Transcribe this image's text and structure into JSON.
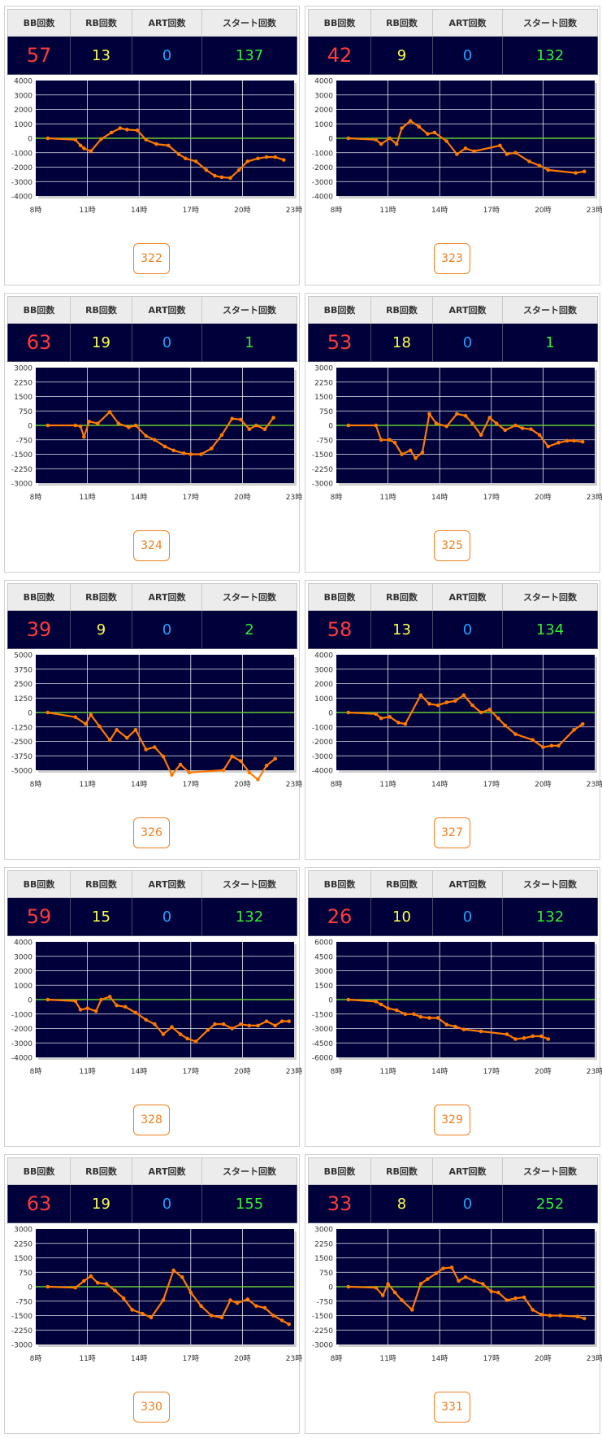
{
  "headers": {
    "bb": "BB回数",
    "rb": "RB回数",
    "art": "ART回数",
    "start": "スタート回数"
  },
  "x_ticks": [
    "8時",
    "11時",
    "14時",
    "17時",
    "20時",
    "23時"
  ],
  "colors": {
    "plot_bg": "#00003a",
    "line": "#ff7a00",
    "zero_line": "#66cc33",
    "grid": "#ffffff"
  },
  "machines": [
    {
      "id": "322",
      "bb": "57",
      "rb": "13",
      "art": "0",
      "start": "137",
      "chart_data": {
        "type": "line",
        "ylim": [
          -4000,
          4000
        ],
        "yticks": [
          "4000",
          "3000",
          "2000",
          "1000",
          "0",
          "-1000",
          "-2000",
          "-3000",
          "-4000"
        ],
        "x": [
          8.7,
          10.3,
          10.6,
          10.8,
          11.2,
          11.8,
          12.4,
          12.9,
          13.3,
          13.9,
          14.4,
          15.0,
          15.7,
          16.3,
          16.7,
          17.3,
          17.9,
          18.4,
          18.8,
          19.3,
          19.8,
          20.3,
          20.9,
          21.4,
          21.9,
          22.4
        ],
        "y": [
          0,
          -100,
          -500,
          -700,
          -900,
          -50,
          400,
          700,
          600,
          550,
          -100,
          -400,
          -500,
          -1100,
          -1400,
          -1600,
          -2200,
          -2600,
          -2700,
          -2750,
          -2200,
          -1600,
          -1400,
          -1300,
          -1300,
          -1500
        ]
      }
    },
    {
      "id": "323",
      "bb": "42",
      "rb": "9",
      "art": "0",
      "start": "132",
      "chart_data": {
        "type": "line",
        "ylim": [
          -4000,
          4000
        ],
        "yticks": [
          "4000",
          "3000",
          "2000",
          "1000",
          "0",
          "-1000",
          "-2000",
          "-3000",
          "-4000"
        ],
        "x": [
          8.7,
          10.3,
          10.6,
          11.1,
          11.5,
          11.8,
          12.3,
          12.8,
          13.3,
          13.7,
          14.4,
          15.0,
          15.5,
          16.0,
          17.5,
          17.9,
          18.4,
          19.2,
          19.8,
          20.3,
          21.9,
          22.4
        ],
        "y": [
          0,
          -100,
          -400,
          0,
          -400,
          700,
          1200,
          800,
          300,
          400,
          -200,
          -1100,
          -700,
          -900,
          -500,
          -1100,
          -1000,
          -1600,
          -1900,
          -2200,
          -2400,
          -2300
        ]
      }
    },
    {
      "id": "324",
      "bb": "63",
      "rb": "19",
      "art": "0",
      "start": "1",
      "chart_data": {
        "type": "line",
        "ylim": [
          -3000,
          3000
        ],
        "yticks": [
          "3000",
          "2250",
          "1500",
          "750",
          "0",
          "-750",
          "-1500",
          "-2250",
          "-3000"
        ],
        "x": [
          8.7,
          10.3,
          10.6,
          10.8,
          11.1,
          11.6,
          12.3,
          12.8,
          13.4,
          13.8,
          14.4,
          14.9,
          15.5,
          16.0,
          16.6,
          17.0,
          17.6,
          18.2,
          18.8,
          19.4,
          19.9,
          20.4,
          20.8,
          21.3,
          21.8
        ],
        "y": [
          0,
          0,
          -50,
          -600,
          200,
          100,
          700,
          100,
          -100,
          0,
          -550,
          -750,
          -1100,
          -1300,
          -1450,
          -1500,
          -1500,
          -1200,
          -500,
          350,
          300,
          -200,
          0,
          -200,
          400
        ]
      }
    },
    {
      "id": "325",
      "bb": "53",
      "rb": "18",
      "art": "0",
      "start": "1",
      "chart_data": {
        "type": "line",
        "ylim": [
          -3000,
          3000
        ],
        "yticks": [
          "3000",
          "2250",
          "1500",
          "750",
          "0",
          "-750",
          "-1500",
          "-2250",
          "-3000"
        ],
        "x": [
          8.7,
          10.3,
          10.6,
          11.1,
          11.4,
          11.8,
          12.3,
          12.6,
          13.0,
          13.4,
          13.8,
          14.4,
          15.0,
          15.5,
          15.9,
          16.4,
          16.9,
          17.3,
          17.8,
          18.4,
          18.8,
          19.3,
          19.8,
          20.3,
          20.9,
          21.4,
          21.8,
          22.3
        ],
        "y": [
          0,
          0,
          -750,
          -750,
          -900,
          -1500,
          -1300,
          -1700,
          -1400,
          600,
          100,
          -50,
          600,
          500,
          100,
          -500,
          400,
          100,
          -250,
          0,
          -150,
          -200,
          -500,
          -1100,
          -900,
          -800,
          -800,
          -850
        ]
      }
    },
    {
      "id": "326",
      "bb": "39",
      "rb": "9",
      "art": "0",
      "start": "2",
      "chart_data": {
        "type": "line",
        "ylim": [
          -5000,
          5000
        ],
        "yticks": [
          "5000",
          "3750",
          "2500",
          "1250",
          "0",
          "-1250",
          "-2500",
          "-3750",
          "-5000"
        ],
        "x": [
          8.7,
          10.3,
          10.9,
          11.2,
          11.7,
          12.3,
          12.7,
          13.3,
          13.8,
          14.4,
          14.9,
          15.4,
          15.9,
          16.4,
          16.9,
          18.9,
          19.4,
          19.9,
          20.4,
          20.9,
          21.4,
          21.9
        ],
        "y": [
          0,
          -400,
          -1000,
          -200,
          -1200,
          -2400,
          -1500,
          -2200,
          -1500,
          -3200,
          -3000,
          -3800,
          -5400,
          -4500,
          -5200,
          -5000,
          -3800,
          -4200,
          -5200,
          -5800,
          -4600,
          -4000
        ]
      }
    },
    {
      "id": "327",
      "bb": "58",
      "rb": "13",
      "art": "0",
      "start": "134",
      "chart_data": {
        "type": "line",
        "ylim": [
          -4000,
          4000
        ],
        "yticks": [
          "4000",
          "3000",
          "2000",
          "1000",
          "0",
          "-1000",
          "-2000",
          "-3000",
          "-4000"
        ],
        "x": [
          8.7,
          10.3,
          10.6,
          11.1,
          11.6,
          12.0,
          12.9,
          13.4,
          13.9,
          14.4,
          14.9,
          15.4,
          15.9,
          16.4,
          16.9,
          17.4,
          17.8,
          18.4,
          19.4,
          20.0,
          20.5,
          20.9,
          21.8,
          22.3
        ],
        "y": [
          0,
          -100,
          -400,
          -300,
          -700,
          -800,
          1200,
          600,
          500,
          700,
          800,
          1200,
          500,
          0,
          200,
          -400,
          -900,
          -1500,
          -1900,
          -2400,
          -2300,
          -2300,
          -1200,
          -800
        ]
      }
    },
    {
      "id": "328",
      "bb": "59",
      "rb": "15",
      "art": "0",
      "start": "132",
      "chart_data": {
        "type": "line",
        "ylim": [
          -4000,
          4000
        ],
        "yticks": [
          "4000",
          "3000",
          "2000",
          "1000",
          "0",
          "-1000",
          "-2000",
          "-3000",
          "-4000"
        ],
        "x": [
          8.7,
          10.3,
          10.6,
          11.0,
          11.5,
          11.8,
          12.3,
          12.7,
          13.2,
          13.8,
          14.4,
          14.9,
          15.4,
          15.9,
          16.4,
          16.8,
          17.3,
          18.0,
          18.4,
          18.9,
          19.4,
          19.9,
          20.4,
          20.9,
          21.4,
          21.9,
          22.3,
          22.7
        ],
        "y": [
          0,
          -100,
          -700,
          -600,
          -800,
          0,
          200,
          -400,
          -500,
          -900,
          -1400,
          -1700,
          -2400,
          -1900,
          -2400,
          -2700,
          -2900,
          -2100,
          -1700,
          -1700,
          -2000,
          -1700,
          -1800,
          -1800,
          -1500,
          -1800,
          -1500,
          -1500
        ]
      }
    },
    {
      "id": "329",
      "bb": "26",
      "rb": "10",
      "art": "0",
      "start": "132",
      "chart_data": {
        "type": "line",
        "ylim": [
          -6000,
          6000
        ],
        "yticks": [
          "6000",
          "4500",
          "3000",
          "1500",
          "0",
          "-1500",
          "-3000",
          "-4500",
          "-6000"
        ],
        "x": [
          8.7,
          10.3,
          10.6,
          11.0,
          11.5,
          12.0,
          12.5,
          12.9,
          13.4,
          13.9,
          14.4,
          14.9,
          15.4,
          16.4,
          17.9,
          18.4,
          18.9,
          19.4,
          19.9,
          20.3
        ],
        "y": [
          0,
          -200,
          -500,
          -900,
          -1100,
          -1500,
          -1500,
          -1800,
          -1900,
          -1900,
          -2600,
          -2800,
          -3100,
          -3300,
          -3600,
          -4100,
          -4000,
          -3800,
          -3800,
          -4100
        ]
      }
    },
    {
      "id": "330",
      "bb": "63",
      "rb": "19",
      "art": "0",
      "start": "155",
      "chart_data": {
        "type": "line",
        "ylim": [
          -3000,
          3000
        ],
        "yticks": [
          "3000",
          "2250",
          "1500",
          "750",
          "0",
          "-750",
          "-1500",
          "-2250",
          "-3000"
        ],
        "x": [
          8.7,
          10.3,
          10.8,
          11.2,
          11.6,
          12.1,
          12.6,
          13.1,
          13.6,
          14.2,
          14.7,
          15.4,
          16.0,
          16.5,
          17.0,
          17.6,
          18.2,
          18.8,
          19.3,
          19.7,
          20.3,
          20.8,
          21.3,
          21.8,
          22.3,
          22.7
        ],
        "y": [
          0,
          -50,
          300,
          550,
          200,
          150,
          -200,
          -600,
          -1200,
          -1400,
          -1600,
          -700,
          850,
          500,
          -300,
          -1000,
          -1500,
          -1600,
          -700,
          -850,
          -650,
          -1000,
          -1100,
          -1500,
          -1750,
          -1950
        ]
      }
    },
    {
      "id": "331",
      "bb": "33",
      "rb": "8",
      "art": "0",
      "start": "252",
      "chart_data": {
        "type": "line",
        "ylim": [
          -3000,
          3000
        ],
        "yticks": [
          "3000",
          "2250",
          "1500",
          "750",
          "0",
          "-750",
          "-1500",
          "-2250",
          "-3000"
        ],
        "x": [
          8.7,
          10.3,
          10.7,
          11.0,
          11.4,
          11.8,
          12.4,
          12.9,
          13.3,
          13.8,
          14.2,
          14.7,
          15.1,
          15.5,
          16.0,
          16.5,
          17.0,
          17.4,
          17.9,
          18.4,
          18.9,
          19.4,
          19.9,
          20.4,
          21.0,
          22.0,
          22.4
        ],
        "y": [
          0,
          -50,
          -450,
          150,
          -300,
          -700,
          -1200,
          150,
          400,
          700,
          950,
          1000,
          300,
          500,
          300,
          150,
          -250,
          -300,
          -700,
          -600,
          -550,
          -1200,
          -1450,
          -1500,
          -1500,
          -1550,
          -1650
        ]
      }
    }
  ]
}
